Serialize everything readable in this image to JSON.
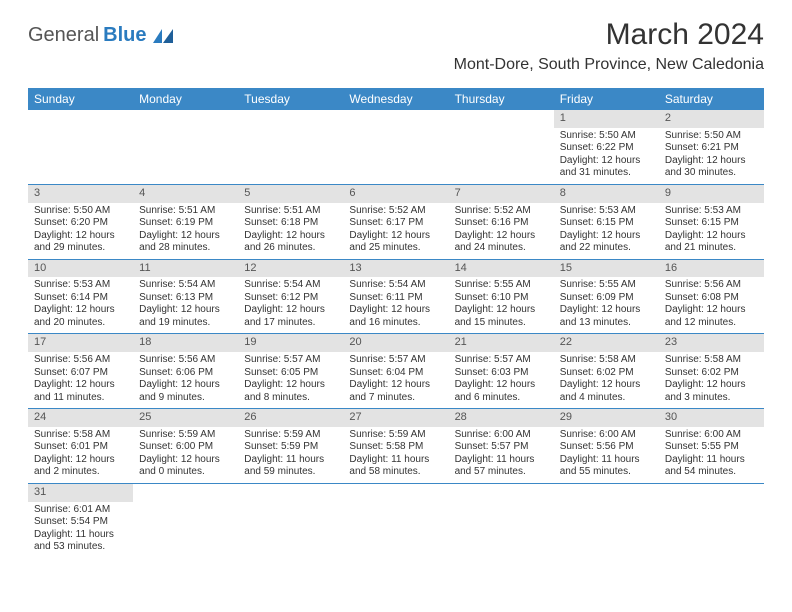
{
  "logo": {
    "part1": "General",
    "part2": "Blue"
  },
  "title": "March 2024",
  "location": "Mont-Dore, South Province, New Caledonia",
  "colors": {
    "header_bg": "#3b88c6",
    "header_text": "#ffffff",
    "daynum_bg": "#e3e3e3",
    "row_divider": "#3b88c6",
    "logo_blue": "#2a7bbf"
  },
  "weekdays": [
    "Sunday",
    "Monday",
    "Tuesday",
    "Wednesday",
    "Thursday",
    "Friday",
    "Saturday"
  ],
  "layout": {
    "first_weekday_index": 5,
    "days_in_month": 31,
    "columns": 7,
    "rows": 6
  },
  "days": {
    "1": {
      "sunrise": "Sunrise: 5:50 AM",
      "sunset": "Sunset: 6:22 PM",
      "daylight": "Daylight: 12 hours and 31 minutes."
    },
    "2": {
      "sunrise": "Sunrise: 5:50 AM",
      "sunset": "Sunset: 6:21 PM",
      "daylight": "Daylight: 12 hours and 30 minutes."
    },
    "3": {
      "sunrise": "Sunrise: 5:50 AM",
      "sunset": "Sunset: 6:20 PM",
      "daylight": "Daylight: 12 hours and 29 minutes."
    },
    "4": {
      "sunrise": "Sunrise: 5:51 AM",
      "sunset": "Sunset: 6:19 PM",
      "daylight": "Daylight: 12 hours and 28 minutes."
    },
    "5": {
      "sunrise": "Sunrise: 5:51 AM",
      "sunset": "Sunset: 6:18 PM",
      "daylight": "Daylight: 12 hours and 26 minutes."
    },
    "6": {
      "sunrise": "Sunrise: 5:52 AM",
      "sunset": "Sunset: 6:17 PM",
      "daylight": "Daylight: 12 hours and 25 minutes."
    },
    "7": {
      "sunrise": "Sunrise: 5:52 AM",
      "sunset": "Sunset: 6:16 PM",
      "daylight": "Daylight: 12 hours and 24 minutes."
    },
    "8": {
      "sunrise": "Sunrise: 5:53 AM",
      "sunset": "Sunset: 6:15 PM",
      "daylight": "Daylight: 12 hours and 22 minutes."
    },
    "9": {
      "sunrise": "Sunrise: 5:53 AM",
      "sunset": "Sunset: 6:15 PM",
      "daylight": "Daylight: 12 hours and 21 minutes."
    },
    "10": {
      "sunrise": "Sunrise: 5:53 AM",
      "sunset": "Sunset: 6:14 PM",
      "daylight": "Daylight: 12 hours and 20 minutes."
    },
    "11": {
      "sunrise": "Sunrise: 5:54 AM",
      "sunset": "Sunset: 6:13 PM",
      "daylight": "Daylight: 12 hours and 19 minutes."
    },
    "12": {
      "sunrise": "Sunrise: 5:54 AM",
      "sunset": "Sunset: 6:12 PM",
      "daylight": "Daylight: 12 hours and 17 minutes."
    },
    "13": {
      "sunrise": "Sunrise: 5:54 AM",
      "sunset": "Sunset: 6:11 PM",
      "daylight": "Daylight: 12 hours and 16 minutes."
    },
    "14": {
      "sunrise": "Sunrise: 5:55 AM",
      "sunset": "Sunset: 6:10 PM",
      "daylight": "Daylight: 12 hours and 15 minutes."
    },
    "15": {
      "sunrise": "Sunrise: 5:55 AM",
      "sunset": "Sunset: 6:09 PM",
      "daylight": "Daylight: 12 hours and 13 minutes."
    },
    "16": {
      "sunrise": "Sunrise: 5:56 AM",
      "sunset": "Sunset: 6:08 PM",
      "daylight": "Daylight: 12 hours and 12 minutes."
    },
    "17": {
      "sunrise": "Sunrise: 5:56 AM",
      "sunset": "Sunset: 6:07 PM",
      "daylight": "Daylight: 12 hours and 11 minutes."
    },
    "18": {
      "sunrise": "Sunrise: 5:56 AM",
      "sunset": "Sunset: 6:06 PM",
      "daylight": "Daylight: 12 hours and 9 minutes."
    },
    "19": {
      "sunrise": "Sunrise: 5:57 AM",
      "sunset": "Sunset: 6:05 PM",
      "daylight": "Daylight: 12 hours and 8 minutes."
    },
    "20": {
      "sunrise": "Sunrise: 5:57 AM",
      "sunset": "Sunset: 6:04 PM",
      "daylight": "Daylight: 12 hours and 7 minutes."
    },
    "21": {
      "sunrise": "Sunrise: 5:57 AM",
      "sunset": "Sunset: 6:03 PM",
      "daylight": "Daylight: 12 hours and 6 minutes."
    },
    "22": {
      "sunrise": "Sunrise: 5:58 AM",
      "sunset": "Sunset: 6:02 PM",
      "daylight": "Daylight: 12 hours and 4 minutes."
    },
    "23": {
      "sunrise": "Sunrise: 5:58 AM",
      "sunset": "Sunset: 6:02 PM",
      "daylight": "Daylight: 12 hours and 3 minutes."
    },
    "24": {
      "sunrise": "Sunrise: 5:58 AM",
      "sunset": "Sunset: 6:01 PM",
      "daylight": "Daylight: 12 hours and 2 minutes."
    },
    "25": {
      "sunrise": "Sunrise: 5:59 AM",
      "sunset": "Sunset: 6:00 PM",
      "daylight": "Daylight: 12 hours and 0 minutes."
    },
    "26": {
      "sunrise": "Sunrise: 5:59 AM",
      "sunset": "Sunset: 5:59 PM",
      "daylight": "Daylight: 11 hours and 59 minutes."
    },
    "27": {
      "sunrise": "Sunrise: 5:59 AM",
      "sunset": "Sunset: 5:58 PM",
      "daylight": "Daylight: 11 hours and 58 minutes."
    },
    "28": {
      "sunrise": "Sunrise: 6:00 AM",
      "sunset": "Sunset: 5:57 PM",
      "daylight": "Daylight: 11 hours and 57 minutes."
    },
    "29": {
      "sunrise": "Sunrise: 6:00 AM",
      "sunset": "Sunset: 5:56 PM",
      "daylight": "Daylight: 11 hours and 55 minutes."
    },
    "30": {
      "sunrise": "Sunrise: 6:00 AM",
      "sunset": "Sunset: 5:55 PM",
      "daylight": "Daylight: 11 hours and 54 minutes."
    },
    "31": {
      "sunrise": "Sunrise: 6:01 AM",
      "sunset": "Sunset: 5:54 PM",
      "daylight": "Daylight: 11 hours and 53 minutes."
    }
  }
}
